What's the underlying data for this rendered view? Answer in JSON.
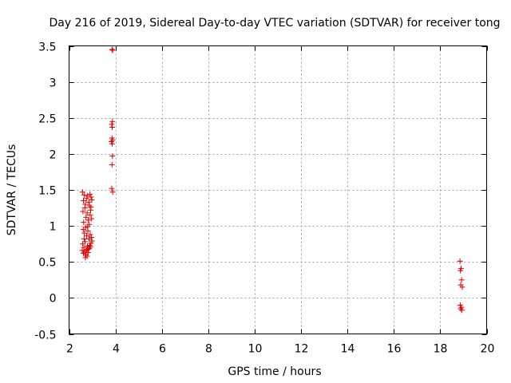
{
  "chart_data": {
    "type": "scatter",
    "title": "Day 216 of 2019, Sidereal Day-to-day VTEC variation (SDTVAR) for receiver tong",
    "xlabel": "GPS time / hours",
    "ylabel": "SDTVAR / TECUs",
    "xlim": [
      2,
      20
    ],
    "ylim": [
      -0.5,
      3.5
    ],
    "xticks": [
      2,
      4,
      6,
      8,
      10,
      12,
      14,
      16,
      18,
      20
    ],
    "yticks": [
      -0.5,
      0,
      0.5,
      1,
      1.5,
      2,
      2.5,
      3,
      3.5
    ],
    "ytick_labels": [
      "-0.5",
      "0",
      "0.5",
      "1",
      "1.5",
      "2",
      "2.5",
      "3",
      "3.5"
    ],
    "grid": true,
    "marker": "+",
    "color": "#e00000",
    "series": [
      {
        "name": "SDTVAR",
        "points": [
          [
            2.58,
            1.47
          ],
          [
            2.62,
            1.35
          ],
          [
            2.65,
            1.43
          ],
          [
            2.7,
            1.3
          ],
          [
            2.75,
            1.38
          ],
          [
            2.8,
            1.42
          ],
          [
            2.85,
            1.33
          ],
          [
            2.9,
            1.44
          ],
          [
            2.95,
            1.4
          ],
          [
            2.98,
            1.36
          ],
          [
            2.6,
            1.2
          ],
          [
            2.68,
            1.25
          ],
          [
            2.78,
            1.18
          ],
          [
            2.88,
            1.28
          ],
          [
            2.93,
            1.22
          ],
          [
            2.63,
            1.05
          ],
          [
            2.73,
            1.12
          ],
          [
            2.83,
            1.08
          ],
          [
            2.91,
            1.15
          ],
          [
            2.97,
            1.1
          ],
          [
            2.61,
            0.95
          ],
          [
            2.66,
            0.9
          ],
          [
            2.71,
            0.98
          ],
          [
            2.76,
            0.86
          ],
          [
            2.81,
            0.93
          ],
          [
            2.86,
            0.82
          ],
          [
            2.91,
            0.88
          ],
          [
            2.96,
            0.84
          ],
          [
            2.99,
            0.79
          ],
          [
            2.59,
            0.75
          ],
          [
            2.64,
            0.7
          ],
          [
            2.69,
            0.78
          ],
          [
            2.74,
            0.66
          ],
          [
            2.79,
            0.72
          ],
          [
            2.84,
            0.68
          ],
          [
            2.89,
            0.73
          ],
          [
            2.94,
            0.76
          ],
          [
            2.57,
            0.66
          ],
          [
            2.62,
            0.62
          ],
          [
            2.67,
            0.64
          ],
          [
            2.72,
            0.6
          ],
          [
            2.77,
            0.67
          ],
          [
            2.82,
            0.63
          ],
          [
            2.87,
            0.69
          ],
          [
            2.92,
            0.71
          ],
          [
            2.78,
            0.58
          ],
          [
            2.7,
            0.56
          ],
          [
            2.65,
            0.82
          ],
          [
            2.8,
            0.99
          ],
          [
            2.87,
            1.02
          ],
          [
            2.94,
            1.26
          ],
          [
            3.85,
            3.45
          ],
          [
            3.88,
            3.44
          ],
          [
            3.87,
            2.45
          ],
          [
            3.84,
            2.41
          ],
          [
            3.86,
            2.37
          ],
          [
            3.85,
            2.22
          ],
          [
            3.88,
            2.19
          ],
          [
            3.83,
            2.17
          ],
          [
            3.86,
            2.14
          ],
          [
            3.87,
            1.97
          ],
          [
            3.85,
            1.85
          ],
          [
            3.84,
            1.52
          ],
          [
            3.88,
            1.47
          ],
          [
            18.85,
            0.51
          ],
          [
            18.9,
            0.41
          ],
          [
            18.87,
            0.38
          ],
          [
            18.92,
            0.25
          ],
          [
            18.88,
            0.18
          ],
          [
            18.95,
            0.15
          ],
          [
            18.86,
            -0.1
          ],
          [
            18.91,
            -0.13
          ],
          [
            18.88,
            -0.15
          ],
          [
            18.93,
            -0.17
          ]
        ]
      }
    ]
  }
}
